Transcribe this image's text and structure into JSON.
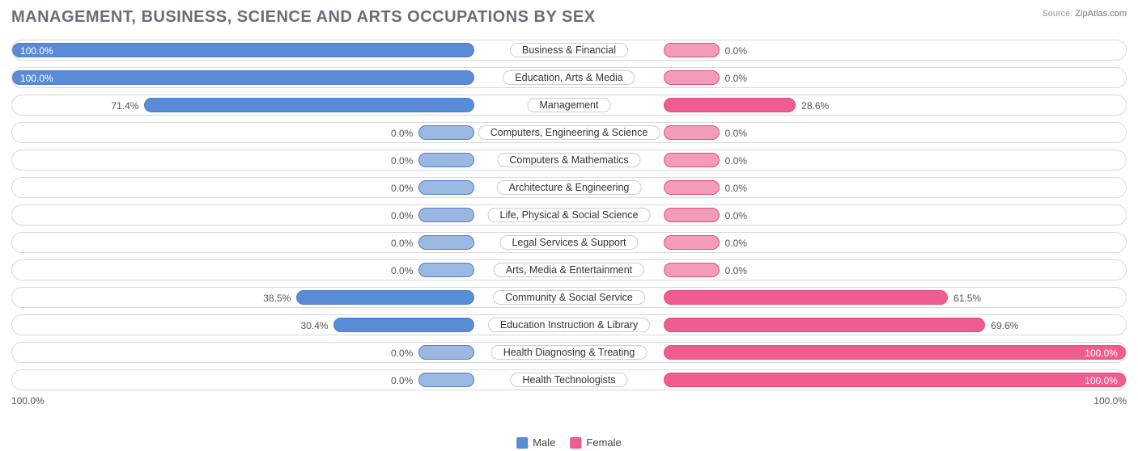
{
  "title": "MANAGEMENT, BUSINESS, SCIENCE AND ARTS OCCUPATIONS BY SEX",
  "source": {
    "label": "Source:",
    "name": "ZipAtlas.com"
  },
  "colors": {
    "male_full": "#5a8bd6",
    "male_weak": "#9ab8e2",
    "male_border": "#4f7ec9",
    "female_full": "#ee5c90",
    "female_weak": "#f29cb9",
    "female_border": "#e84a82",
    "title": "#6b6b7b",
    "text": "#555555",
    "row_border": "#d9d9d9"
  },
  "axis": {
    "left": "100.0%",
    "right": "100.0%"
  },
  "legend": {
    "male": "Male",
    "female": "Female"
  },
  "label_half_width_pct": 17,
  "weak_bar_pct": 10,
  "rows": [
    {
      "label": "Business & Financial",
      "male": 100.0,
      "female": 0.0
    },
    {
      "label": "Education, Arts & Media",
      "male": 100.0,
      "female": 0.0
    },
    {
      "label": "Management",
      "male": 71.4,
      "female": 28.6
    },
    {
      "label": "Computers, Engineering & Science",
      "male": 0.0,
      "female": 0.0
    },
    {
      "label": "Computers & Mathematics",
      "male": 0.0,
      "female": 0.0
    },
    {
      "label": "Architecture & Engineering",
      "male": 0.0,
      "female": 0.0
    },
    {
      "label": "Life, Physical & Social Science",
      "male": 0.0,
      "female": 0.0
    },
    {
      "label": "Legal Services & Support",
      "male": 0.0,
      "female": 0.0
    },
    {
      "label": "Arts, Media & Entertainment",
      "male": 0.0,
      "female": 0.0
    },
    {
      "label": "Community & Social Service",
      "male": 38.5,
      "female": 61.5
    },
    {
      "label": "Education Instruction & Library",
      "male": 30.4,
      "female": 69.6
    },
    {
      "label": "Health Diagnosing & Treating",
      "male": 0.0,
      "female": 100.0
    },
    {
      "label": "Health Technologists",
      "male": 0.0,
      "female": 100.0
    }
  ]
}
